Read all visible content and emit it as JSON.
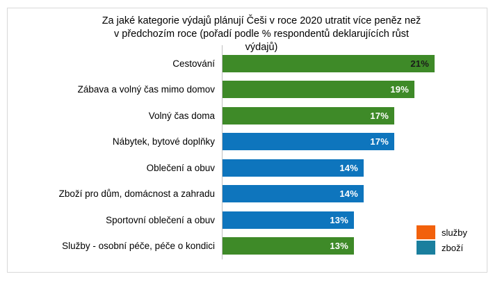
{
  "frame": {
    "background": "#ffffff",
    "border_color": "#d8d8d8"
  },
  "chart_data": {
    "type": "bar",
    "orientation": "horizontal",
    "title": "Za jaké kategorie výdajů plánují Češi v roce 2020 utratit více peněz než v předchozím roce (pořadí podle % respondentů deklarujících růst výdajů)",
    "title_lines": [
      "Za jaké kategorie výdajů plánují Češi v roce 2020 utratit více peněz než",
      "v předchozím roce (pořadí podle % respondentů deklarujících růst",
      "výdajů)"
    ],
    "categories": [
      "Cestování",
      "Zábava a volný čas mimo domov",
      "Volný čas doma",
      "Nábytek, bytové doplňky",
      "Oblečení a obuv",
      "Zboží pro dům, domácnost a zahradu",
      "Sportovní oblečení a obuv",
      "Služby - osobní péče, péče o kondici"
    ],
    "values": [
      21,
      19,
      17,
      17,
      14,
      14,
      13,
      13
    ],
    "bars": [
      {
        "label": "Cestování",
        "value": 21,
        "value_label": "21%",
        "group": "služby",
        "color": "#3e8a28",
        "value_label_color": "#1a1a1a"
      },
      {
        "label": "Zábava a volný čas mimo domov",
        "value": 19,
        "value_label": "19%",
        "group": "služby",
        "color": "#3e8a28",
        "value_label_color": "#ffffff"
      },
      {
        "label": "Volný čas doma",
        "value": 17,
        "value_label": "17%",
        "group": "služby",
        "color": "#3e8a28",
        "value_label_color": "#ffffff"
      },
      {
        "label": "Nábytek, bytové doplňky",
        "value": 17,
        "value_label": "17%",
        "group": "zboží",
        "color": "#0e75bd",
        "value_label_color": "#ffffff"
      },
      {
        "label": "Oblečení a obuv",
        "value": 14,
        "value_label": "14%",
        "group": "zboží",
        "color": "#0e75bd",
        "value_label_color": "#ffffff"
      },
      {
        "label": "Zboží pro dům, domácnost a zahradu",
        "value": 14,
        "value_label": "14%",
        "group": "zboží",
        "color": "#0e75bd",
        "value_label_color": "#ffffff"
      },
      {
        "label": "Sportovní oblečení a obuv",
        "value": 13,
        "value_label": "13%",
        "group": "zboží",
        "color": "#0e75bd",
        "value_label_color": "#ffffff"
      },
      {
        "label": "Služby - osobní péče, péče o kondici",
        "value": 13,
        "value_label": "13%",
        "group": "služby",
        "color": "#3e8a28",
        "value_label_color": "#ffffff"
      }
    ],
    "bar_colors": {
      "služby": "#3e8a28",
      "zboží": "#0e75bd"
    },
    "xlim": [
      0,
      21.6
    ],
    "grid": false,
    "axis_line_color": "#bfbfbf",
    "legend_position": "bottom-right",
    "legend": [
      {
        "label": "služby",
        "color": "#f2610c"
      },
      {
        "label": "zboží",
        "color": "#1a7f9e"
      }
    ]
  }
}
